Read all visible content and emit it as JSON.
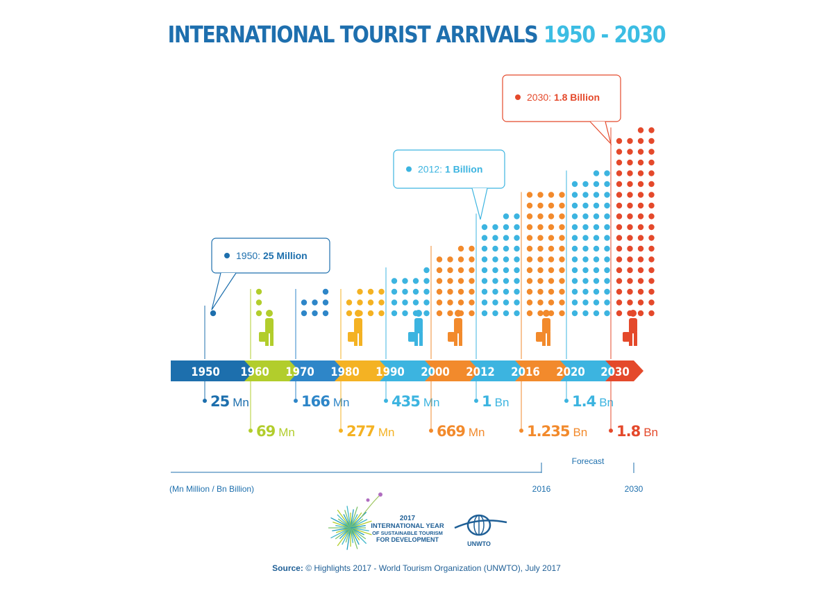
{
  "title": {
    "main": "INTERNATIONAL TOURIST ARRIVALS",
    "years": "1950 - 2030"
  },
  "colors": {
    "dark_blue": "#1d6fad",
    "lime": "#b2cd2c",
    "mid_blue": "#2e86c8",
    "yellow": "#f4b223",
    "sky_blue": "#3cb4e0",
    "orange": "#f28a2c",
    "red": "#e4492b"
  },
  "chart_data": {
    "type": "bar",
    "title": "INTERNATIONAL TOURIST ARRIVALS 1950 - 2030",
    "unit_note": "(Mn Million / Bn Billion)",
    "categories": [
      "1950",
      "1960",
      "1970",
      "1980",
      "1990",
      "2000",
      "2012",
      "2016",
      "2020",
      "2030"
    ],
    "values_millions": [
      25,
      69,
      166,
      277,
      435,
      669,
      1000,
      1235,
      1400,
      1800
    ],
    "value_labels": [
      {
        "num": "25",
        "unit": "Mn"
      },
      {
        "num": "69",
        "unit": "Mn"
      },
      {
        "num": "166",
        "unit": "Mn"
      },
      {
        "num": "277",
        "unit": "Mn"
      },
      {
        "num": "435",
        "unit": "Mn"
      },
      {
        "num": "669",
        "unit": "Mn"
      },
      {
        "num": "1",
        "unit": "Bn"
      },
      {
        "num": "1.235",
        "unit": "Bn"
      },
      {
        "num": "1.4",
        "unit": "Bn"
      },
      {
        "num": "1.8",
        "unit": "Bn"
      }
    ],
    "forecast_from": "2016",
    "forecast_label": "Forecast",
    "timeline_marks": [
      "2016",
      "2030"
    ],
    "callouts": [
      {
        "year_label": "1950:",
        "value": "25 Million"
      },
      {
        "year_label": "2012:",
        "value": "1 Billion"
      },
      {
        "year_label": "2030:",
        "value": "1.8 Billion"
      }
    ]
  },
  "logos": {
    "iy_year": "2017",
    "iy_line1": "INTERNATIONAL YEAR",
    "iy_line2": "OF SUSTAINABLE TOURISM",
    "iy_line3": "FOR DEVELOPMENT",
    "unwto": "UNWTO"
  },
  "source": {
    "label": "Source:",
    "text": "© Highlights 2017 - World Tourism Organization (UNWTO), July 2017"
  }
}
